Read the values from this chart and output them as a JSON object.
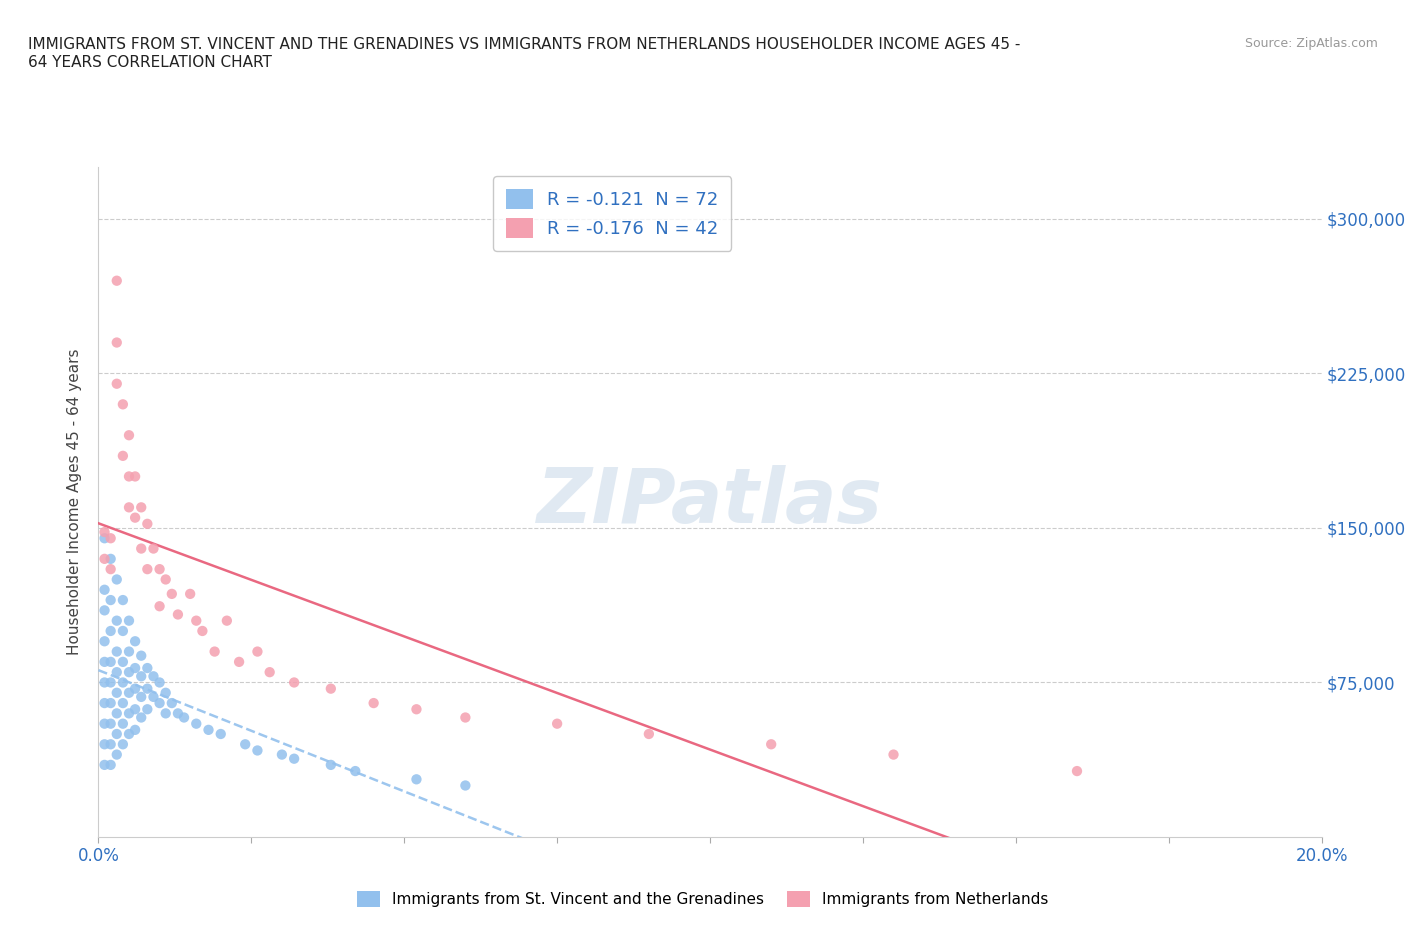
{
  "title": "IMMIGRANTS FROM ST. VINCENT AND THE GRENADINES VS IMMIGRANTS FROM NETHERLANDS HOUSEHOLDER INCOME AGES 45 -\n64 YEARS CORRELATION CHART",
  "source": "Source: ZipAtlas.com",
  "ylabel": "Householder Income Ages 45 - 64 years",
  "legend_label1": "Immigrants from St. Vincent and the Grenadines",
  "legend_label2": "Immigrants from Netherlands",
  "r1": -0.121,
  "n1": 72,
  "r2": -0.176,
  "n2": 42,
  "color1": "#92C0ED",
  "color2": "#F4A0B0",
  "trend1_color": "#92C0ED",
  "trend2_color": "#E8607A",
  "yticks": [
    0,
    75000,
    150000,
    225000,
    300000
  ],
  "ytick_labels": [
    "",
    "$75,000",
    "$150,000",
    "$225,000",
    "$300,000"
  ],
  "xmin": 0.0,
  "xmax": 0.2,
  "ymin": 0,
  "ymax": 325000,
  "watermark": "ZIPatlas",
  "blue_x": [
    0.001,
    0.001,
    0.001,
    0.001,
    0.001,
    0.001,
    0.001,
    0.001,
    0.001,
    0.001,
    0.002,
    0.002,
    0.002,
    0.002,
    0.002,
    0.002,
    0.002,
    0.002,
    0.002,
    0.003,
    0.003,
    0.003,
    0.003,
    0.003,
    0.003,
    0.003,
    0.003,
    0.004,
    0.004,
    0.004,
    0.004,
    0.004,
    0.004,
    0.004,
    0.005,
    0.005,
    0.005,
    0.005,
    0.005,
    0.005,
    0.006,
    0.006,
    0.006,
    0.006,
    0.006,
    0.007,
    0.007,
    0.007,
    0.007,
    0.008,
    0.008,
    0.008,
    0.009,
    0.009,
    0.01,
    0.01,
    0.011,
    0.011,
    0.012,
    0.013,
    0.014,
    0.016,
    0.018,
    0.02,
    0.024,
    0.026,
    0.03,
    0.032,
    0.038,
    0.042,
    0.052,
    0.06
  ],
  "blue_y": [
    145000,
    120000,
    110000,
    95000,
    85000,
    75000,
    65000,
    55000,
    45000,
    35000,
    135000,
    115000,
    100000,
    85000,
    75000,
    65000,
    55000,
    45000,
    35000,
    125000,
    105000,
    90000,
    80000,
    70000,
    60000,
    50000,
    40000,
    115000,
    100000,
    85000,
    75000,
    65000,
    55000,
    45000,
    105000,
    90000,
    80000,
    70000,
    60000,
    50000,
    95000,
    82000,
    72000,
    62000,
    52000,
    88000,
    78000,
    68000,
    58000,
    82000,
    72000,
    62000,
    78000,
    68000,
    75000,
    65000,
    70000,
    60000,
    65000,
    60000,
    58000,
    55000,
    52000,
    50000,
    45000,
    42000,
    40000,
    38000,
    35000,
    32000,
    28000,
    25000
  ],
  "pink_x": [
    0.001,
    0.001,
    0.002,
    0.002,
    0.003,
    0.003,
    0.003,
    0.004,
    0.004,
    0.005,
    0.005,
    0.005,
    0.006,
    0.006,
    0.007,
    0.007,
    0.008,
    0.008,
    0.009,
    0.01,
    0.01,
    0.011,
    0.012,
    0.013,
    0.015,
    0.016,
    0.017,
    0.019,
    0.021,
    0.023,
    0.026,
    0.028,
    0.032,
    0.038,
    0.045,
    0.052,
    0.06,
    0.075,
    0.09,
    0.11,
    0.13,
    0.16
  ],
  "pink_y": [
    148000,
    135000,
    145000,
    130000,
    270000,
    240000,
    220000,
    210000,
    185000,
    195000,
    175000,
    160000,
    175000,
    155000,
    160000,
    140000,
    152000,
    130000,
    140000,
    130000,
    112000,
    125000,
    118000,
    108000,
    118000,
    105000,
    100000,
    90000,
    105000,
    85000,
    90000,
    80000,
    75000,
    72000,
    65000,
    62000,
    58000,
    55000,
    50000,
    45000,
    40000,
    32000
  ]
}
